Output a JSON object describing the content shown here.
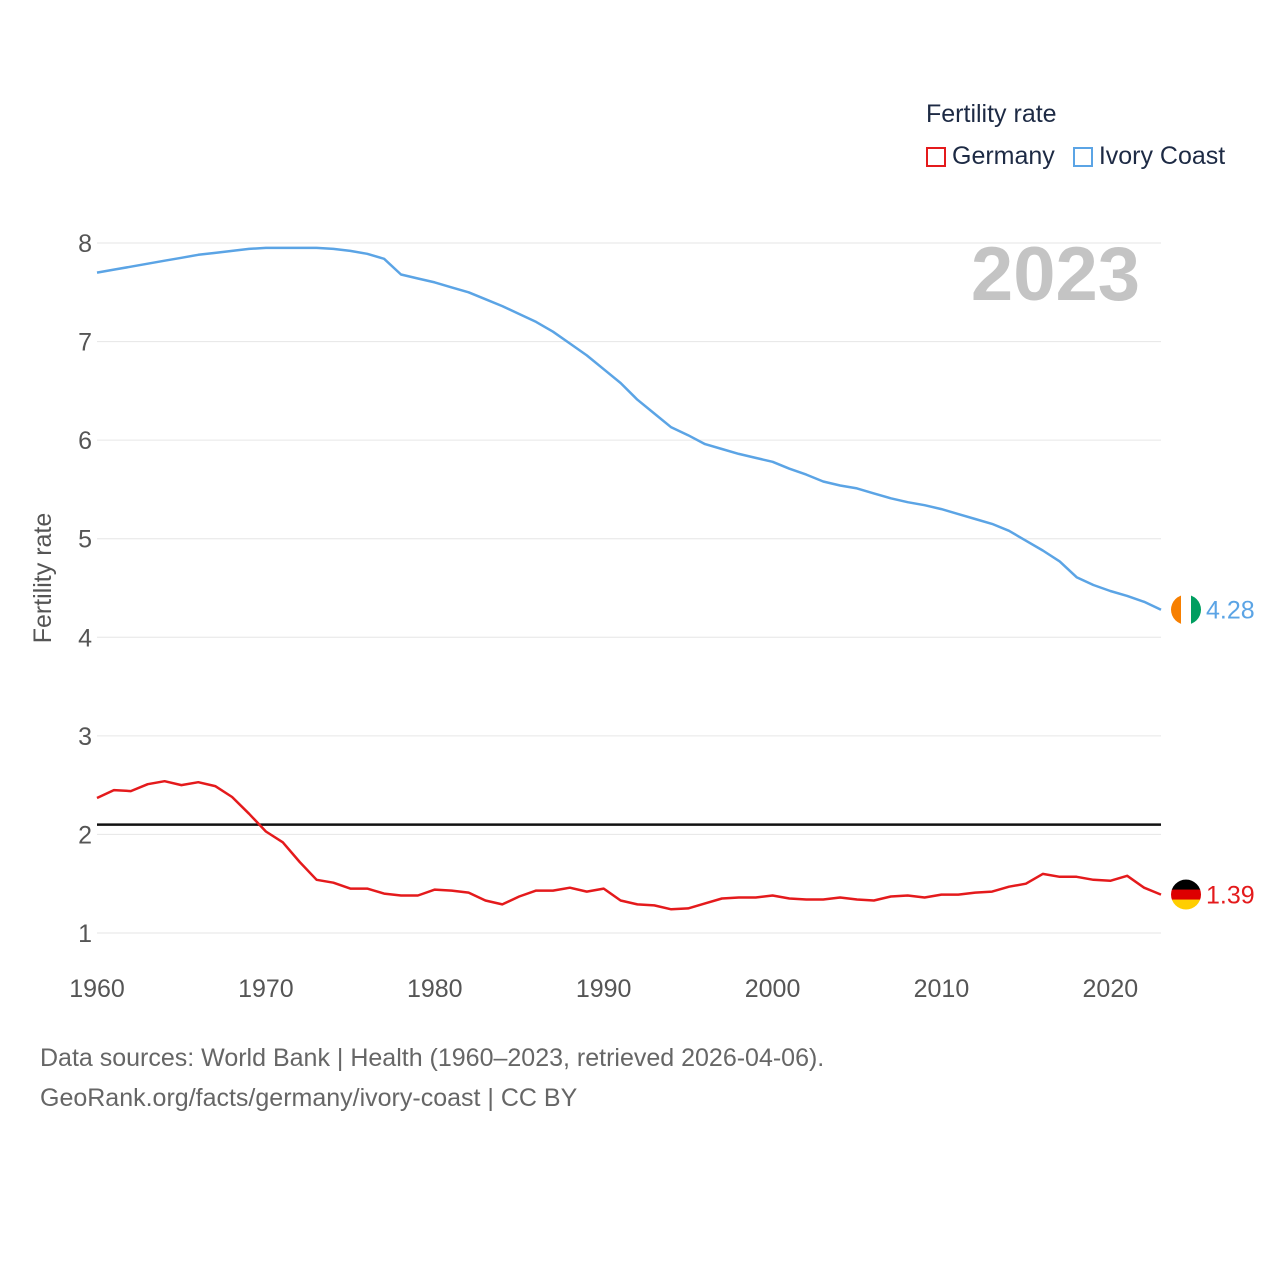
{
  "legend": {
    "title": "Fertility rate",
    "items": [
      {
        "label": "Germany",
        "color": "#e41a1c"
      },
      {
        "label": "Ivory Coast",
        "color": "#5ba4e5"
      }
    ]
  },
  "chart_data": {
    "type": "line",
    "year_label": "2023",
    "ylabel": "Fertility rate",
    "xlim": [
      1960,
      2023
    ],
    "ylim": [
      1,
      8
    ],
    "yticks": [
      "1",
      "2",
      "3",
      "4",
      "5",
      "6",
      "7",
      "8"
    ],
    "xticks": [
      "1960",
      "1970",
      "1980",
      "1990",
      "2000",
      "2010",
      "2020"
    ],
    "reference_line": 2.1,
    "x": [
      1960,
      1961,
      1962,
      1963,
      1964,
      1965,
      1966,
      1967,
      1968,
      1969,
      1970,
      1971,
      1972,
      1973,
      1974,
      1975,
      1976,
      1977,
      1978,
      1979,
      1980,
      1981,
      1982,
      1983,
      1984,
      1985,
      1986,
      1987,
      1988,
      1989,
      1990,
      1991,
      1992,
      1993,
      1994,
      1995,
      1996,
      1997,
      1998,
      1999,
      2000,
      2001,
      2002,
      2003,
      2004,
      2005,
      2006,
      2007,
      2008,
      2009,
      2010,
      2011,
      2012,
      2013,
      2014,
      2015,
      2016,
      2017,
      2018,
      2019,
      2020,
      2021,
      2022,
      2023
    ],
    "series": [
      {
        "name": "Germany",
        "color": "#e41a1c",
        "end_label": "1.39",
        "flag_colors": [
          "#000000",
          "#dd0000",
          "#ffce00"
        ],
        "values": [
          2.37,
          2.45,
          2.44,
          2.51,
          2.54,
          2.5,
          2.53,
          2.49,
          2.38,
          2.21,
          2.03,
          1.92,
          1.72,
          1.54,
          1.51,
          1.45,
          1.45,
          1.4,
          1.38,
          1.38,
          1.44,
          1.43,
          1.41,
          1.33,
          1.29,
          1.37,
          1.43,
          1.43,
          1.46,
          1.42,
          1.45,
          1.33,
          1.29,
          1.28,
          1.24,
          1.25,
          1.3,
          1.35,
          1.36,
          1.36,
          1.38,
          1.35,
          1.34,
          1.34,
          1.36,
          1.34,
          1.33,
          1.37,
          1.38,
          1.36,
          1.39,
          1.39,
          1.41,
          1.42,
          1.47,
          1.5,
          1.6,
          1.57,
          1.57,
          1.54,
          1.53,
          1.58,
          1.46,
          1.39
        ]
      },
      {
        "name": "Ivory Coast",
        "color": "#5ba4e5",
        "end_label": "4.28",
        "flag_colors": [
          "#f77f00",
          "#ffffff",
          "#009e60"
        ],
        "values": [
          7.7,
          7.73,
          7.76,
          7.79,
          7.82,
          7.85,
          7.88,
          7.9,
          7.92,
          7.94,
          7.95,
          7.95,
          7.95,
          7.95,
          7.94,
          7.92,
          7.89,
          7.84,
          7.68,
          7.64,
          7.6,
          7.55,
          7.5,
          7.43,
          7.36,
          7.28,
          7.2,
          7.1,
          6.98,
          6.86,
          6.72,
          6.58,
          6.41,
          6.27,
          6.13,
          6.05,
          5.96,
          5.91,
          5.86,
          5.82,
          5.78,
          5.71,
          5.65,
          5.58,
          5.54,
          5.51,
          5.46,
          5.41,
          5.37,
          5.34,
          5.3,
          5.25,
          5.2,
          5.15,
          5.08,
          4.98,
          4.88,
          4.77,
          4.61,
          4.53,
          4.47,
          4.42,
          4.36,
          4.28
        ]
      }
    ]
  },
  "footer": {
    "line1": "Data sources: World Bank | Health (1960–2023, retrieved 2026-04-06).",
    "line2": "GeoRank.org/facts/germany/ivory-coast | CC BY"
  }
}
